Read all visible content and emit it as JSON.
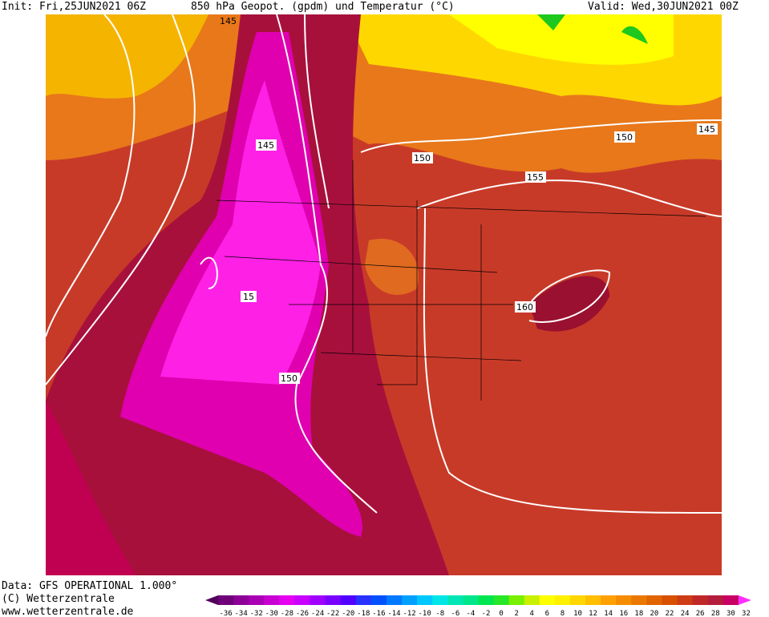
{
  "header": {
    "init": "Init: Fri,25JUN2021 06Z",
    "title": "850 hPa Geopot. (gpdm) und Temperatur (°C)",
    "valid": "Valid: Wed,30JUN2021 00Z"
  },
  "footer": {
    "data": "Data: GFS OPERATIONAL 1.000°",
    "copyright": "(C) Wetterzentrale",
    "url": "www.wetterzentrale.de"
  },
  "contour_labels": [
    "145",
    "150",
    "155",
    "150",
    "145",
    "160",
    "15",
    "150",
    "145"
  ],
  "colorbar": {
    "labels": [
      "-36",
      "-34",
      "-32",
      "-30",
      "-28",
      "-26",
      "-24",
      "-22",
      "-20",
      "-18",
      "-16",
      "-14",
      "-12",
      "-10",
      "-8",
      "-6",
      "-4",
      "-2",
      "0",
      "2",
      "4",
      "6",
      "8",
      "10",
      "12",
      "14",
      "16",
      "18",
      "20",
      "22",
      "24",
      "26",
      "28",
      "30",
      "32"
    ],
    "colors": [
      "#50005a",
      "#6e0078",
      "#8c0096",
      "#aa00b4",
      "#c800d2",
      "#e600f0",
      "#c800ff",
      "#a000ff",
      "#7800ff",
      "#5000ff",
      "#2832ff",
      "#0050ff",
      "#0078ff",
      "#00a0ff",
      "#00c8ff",
      "#00e6e6",
      "#00e6b4",
      "#00e68c",
      "#00e650",
      "#28e628",
      "#78f000",
      "#c8f000",
      "#ffff00",
      "#fff000",
      "#ffd700",
      "#ffbe00",
      "#ffa000",
      "#f58c00",
      "#eb7800",
      "#e16400",
      "#d75000",
      "#cd3c14",
      "#c02828",
      "#b41e3c",
      "#c80064",
      "#ff30ff"
    ]
  }
}
